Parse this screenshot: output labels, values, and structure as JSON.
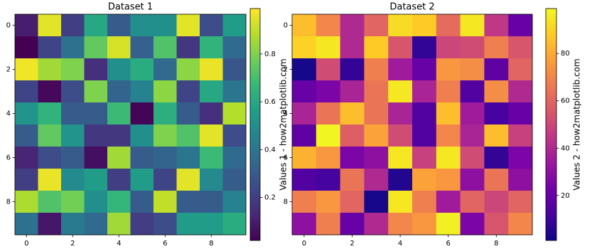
{
  "chart_data": [
    {
      "type": "heatmap",
      "title": "Dataset 1",
      "colormap": "viridis",
      "xlim": [
        -0.5,
        9.5
      ],
      "ylim": [
        -0.5,
        9.5
      ],
      "xticks": [
        0,
        2,
        4,
        6,
        8
      ],
      "yticks": [
        0,
        2,
        4,
        6,
        8
      ],
      "z": [
        [
          0.1,
          0.95,
          0.2,
          0.6,
          0.3,
          0.5,
          0.5,
          0.95,
          0.25,
          0.55
        ],
        [
          0.02,
          0.22,
          0.38,
          0.75,
          0.93,
          0.32,
          0.72,
          0.18,
          0.65,
          0.35
        ],
        [
          0.97,
          0.85,
          0.8,
          0.15,
          0.5,
          0.62,
          0.35,
          0.82,
          0.96,
          0.28
        ],
        [
          0.22,
          0.04,
          0.25,
          0.8,
          0.33,
          0.45,
          0.82,
          0.22,
          0.6,
          0.4
        ],
        [
          0.52,
          0.65,
          0.3,
          0.3,
          0.68,
          0.03,
          0.63,
          0.3,
          0.15,
          0.88
        ],
        [
          0.3,
          0.75,
          0.52,
          0.18,
          0.18,
          0.5,
          0.8,
          0.72,
          0.95,
          0.25
        ],
        [
          0.12,
          0.25,
          0.3,
          0.06,
          0.85,
          0.3,
          0.33,
          0.4,
          0.68,
          0.35
        ],
        [
          0.2,
          0.96,
          0.48,
          0.55,
          0.2,
          0.55,
          0.22,
          0.95,
          0.48,
          0.3
        ],
        [
          0.87,
          0.72,
          0.78,
          0.5,
          0.66,
          0.3,
          0.9,
          0.3,
          0.3,
          0.45
        ],
        [
          0.38,
          0.08,
          0.42,
          0.35,
          0.85,
          0.2,
          0.25,
          0.55,
          0.55,
          0.62
        ]
      ],
      "colorbar": {
        "label": "Values 1 - how2matplotlib.com",
        "lim": [
          0.02,
          0.99
        ],
        "ticks": [
          0.2,
          0.4,
          0.6,
          0.8
        ]
      }
    },
    {
      "type": "heatmap",
      "title": "Dataset 2",
      "colormap": "plasma",
      "xlim": [
        -0.5,
        9.5
      ],
      "ylim": [
        -0.5,
        9.5
      ],
      "xticks": [
        0,
        2,
        4,
        6,
        8
      ],
      "yticks": [
        0,
        2,
        4,
        6,
        8
      ],
      "z": [
        [
          85,
          70,
          40,
          60,
          92,
          88,
          62,
          95,
          45,
          20
        ],
        [
          90,
          95,
          40,
          88,
          55,
          8,
          50,
          52,
          68,
          55
        ],
        [
          3,
          52,
          8,
          68,
          35,
          20,
          75,
          72,
          18,
          60
        ],
        [
          20,
          25,
          38,
          65,
          95,
          38,
          68,
          15,
          72,
          40
        ],
        [
          38,
          65,
          85,
          65,
          38,
          15,
          85,
          35,
          12,
          20
        ],
        [
          18,
          98,
          58,
          78,
          52,
          15,
          70,
          38,
          85,
          48
        ],
        [
          82,
          75,
          25,
          30,
          95,
          48,
          95,
          52,
          8,
          25
        ],
        [
          15,
          12,
          65,
          40,
          5,
          78,
          75,
          30,
          65,
          30
        ],
        [
          68,
          75,
          60,
          3,
          95,
          68,
          35,
          60,
          50,
          60
        ],
        [
          30,
          68,
          20,
          40,
          70,
          75,
          97,
          25,
          55,
          70
        ]
      ],
      "colorbar": {
        "label": "Values 2 - how2matplotlib.com",
        "lim": [
          1,
          99
        ],
        "ticks": [
          20,
          40,
          60,
          80
        ]
      }
    }
  ]
}
